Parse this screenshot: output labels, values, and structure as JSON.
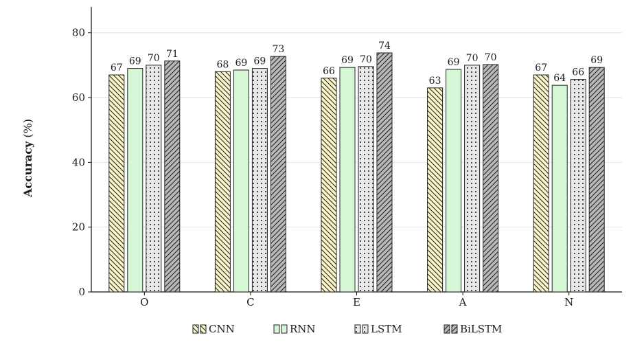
{
  "chart_data": {
    "type": "bar",
    "categories": [
      "O",
      "C",
      "E",
      "A",
      "N"
    ],
    "series": [
      {
        "name": "CNN",
        "values": [
          67,
          68,
          66,
          63,
          67
        ],
        "labels": [
          "67",
          "68",
          "66",
          "63",
          "67"
        ],
        "pattern": "diag-back",
        "fill": "#fdf6c8",
        "stroke": "#222222"
      },
      {
        "name": "RNN",
        "values": [
          69,
          68.5,
          69.3,
          68.7,
          63.8
        ],
        "labels": [
          "69",
          "69",
          "69",
          "69",
          "64"
        ],
        "pattern": "solid",
        "fill": "#d5f7d5",
        "stroke": "#222222"
      },
      {
        "name": "LSTM",
        "values": [
          70,
          69,
          69.6,
          70,
          65.6
        ],
        "labels": [
          "70",
          "69",
          "70",
          "70",
          "66"
        ],
        "pattern": "dots",
        "fill": "#e8e8e8",
        "stroke": "#222222"
      },
      {
        "name": "BiLSTM",
        "values": [
          71.3,
          72.7,
          73.8,
          70.2,
          69.3
        ],
        "labels": [
          "71",
          "73",
          "74",
          "70",
          "69"
        ],
        "pattern": "diag-fwd",
        "fill": "#b8b8b8",
        "stroke": "#222222"
      }
    ],
    "ylabel_bold": "Accuracy",
    "ylabel_unit": "(%)",
    "yticks": [
      0,
      20,
      40,
      60,
      80
    ],
    "ylim": [
      0,
      88
    ],
    "grid": "horizontal",
    "legend": "bottom"
  }
}
